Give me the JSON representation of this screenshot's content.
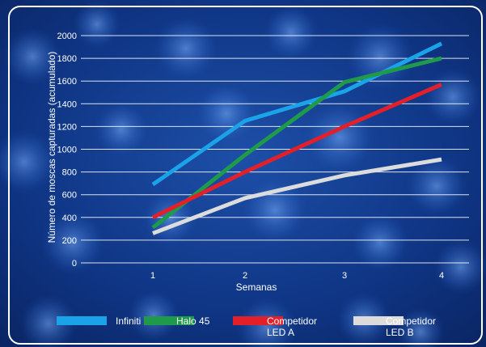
{
  "chart_data": {
    "type": "line",
    "xlabel": "Semanas",
    "ylabel": "Número de moscas capturadas (acumulado)",
    "x": [
      1,
      2,
      3,
      4
    ],
    "xticks": [
      "1",
      "2",
      "3",
      "4"
    ],
    "ylim": [
      0,
      2000
    ],
    "yticks": [
      0,
      200,
      400,
      600,
      800,
      1000,
      1200,
      1400,
      1600,
      1800,
      2000
    ],
    "grid": true,
    "legend_position": "bottom",
    "series": [
      {
        "name": "Infiniti",
        "color": "#1aa3e8",
        "values": [
          690,
          1250,
          1510,
          1930
        ]
      },
      {
        "name": "Halo 45",
        "color": "#1e9a4a",
        "values": [
          310,
          950,
          1590,
          1800
        ]
      },
      {
        "name": "Competidor LED A",
        "name_lines": [
          "Competidor",
          "LED A"
        ],
        "color": "#e3202a",
        "values": [
          400,
          800,
          1200,
          1570
        ]
      },
      {
        "name": "Competidor LED B",
        "name_lines": [
          "Competidor",
          "LED B"
        ],
        "color": "#dcdcdc",
        "values": [
          260,
          570,
          770,
          910
        ]
      }
    ]
  }
}
